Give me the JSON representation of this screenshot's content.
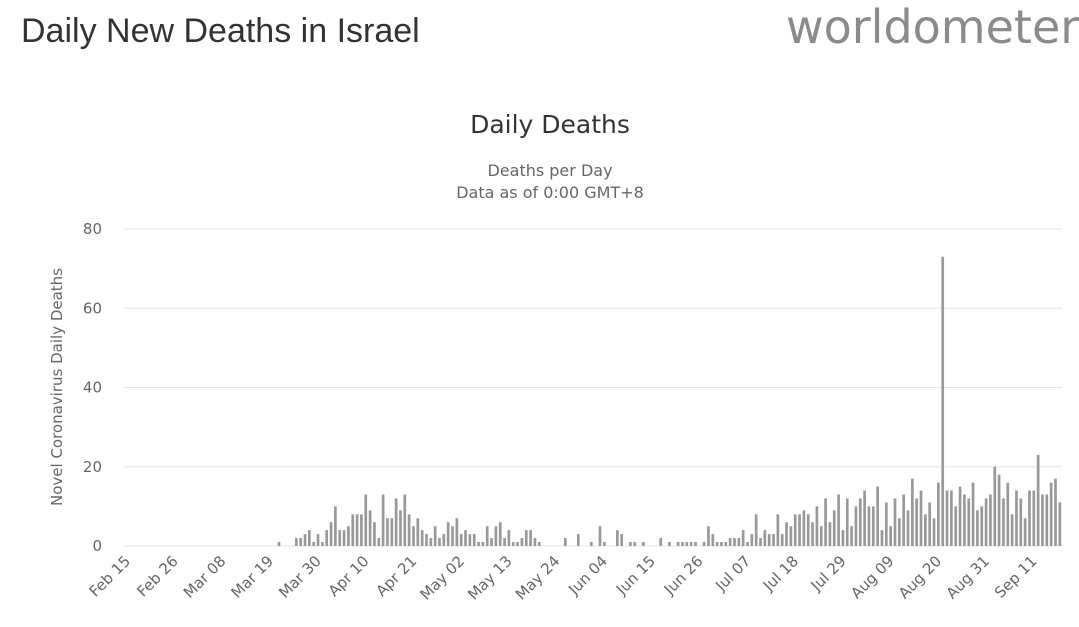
{
  "header": {
    "title": "Daily New Deaths in Israel",
    "logo_text": "worldometer"
  },
  "colors": {
    "bar": "#999999",
    "grid": "#e6e6e6",
    "text": "#666666",
    "title": "#333333"
  },
  "chart_data": {
    "type": "bar",
    "title": "Daily Deaths",
    "subtitle_line1": "Deaths per Day",
    "subtitle_line2": "Data as of 0:00 GMT+8",
    "xlabel": "",
    "ylabel": "Novel Coronavirus Daily Deaths",
    "ylim": [
      0,
      80
    ],
    "yticks": [
      0,
      20,
      40,
      60,
      80
    ],
    "start_date": "Feb 15",
    "xtick_labels": [
      "Feb 15",
      "Feb 26",
      "Mar 08",
      "Mar 19",
      "Mar 30",
      "Apr 10",
      "Apr 21",
      "May 02",
      "May 13",
      "May 24",
      "Jun 04",
      "Jun 15",
      "Jun 26",
      "Jul 07",
      "Jul 18",
      "Jul 29",
      "Aug 09",
      "Aug 20",
      "Aug 31",
      "Sep 11"
    ],
    "xtick_interval_days": 11,
    "series": [
      {
        "name": "Daily Deaths",
        "values": [
          0,
          0,
          0,
          0,
          0,
          0,
          0,
          0,
          0,
          0,
          0,
          0,
          0,
          0,
          0,
          0,
          0,
          0,
          0,
          0,
          0,
          0,
          0,
          0,
          0,
          0,
          0,
          0,
          0,
          0,
          0,
          0,
          0,
          0,
          0,
          1,
          0,
          0,
          0,
          2,
          2,
          3,
          4,
          1,
          3,
          1,
          4,
          6,
          10,
          4,
          4,
          5,
          8,
          8,
          8,
          13,
          9,
          6,
          2,
          13,
          7,
          7,
          12,
          9,
          13,
          8,
          5,
          7,
          4,
          3,
          2,
          5,
          2,
          3,
          6,
          5,
          7,
          3,
          4,
          3,
          3,
          1,
          1,
          5,
          2,
          5,
          6,
          2,
          4,
          1,
          1,
          2,
          4,
          4,
          2,
          1,
          0,
          0,
          0,
          0,
          0,
          2,
          0,
          0,
          3,
          0,
          0,
          1,
          0,
          5,
          1,
          0,
          0,
          4,
          3,
          0,
          1,
          1,
          0,
          1,
          0,
          0,
          0,
          2,
          0,
          1,
          0,
          1,
          1,
          1,
          1,
          1,
          0,
          1,
          5,
          3,
          1,
          1,
          1,
          2,
          2,
          2,
          4,
          1,
          3,
          8,
          2,
          4,
          3,
          3,
          8,
          3,
          6,
          5,
          8,
          8,
          9,
          8,
          6,
          10,
          5,
          12,
          6,
          9,
          13,
          4,
          12,
          5,
          10,
          12,
          14,
          10,
          10,
          15,
          4,
          11,
          5,
          12,
          7,
          13,
          9,
          17,
          12,
          14,
          8,
          11,
          7,
          16,
          73,
          14,
          14,
          10,
          15,
          13,
          12,
          16,
          9,
          10,
          12,
          13,
          20,
          18,
          12,
          16,
          8,
          14,
          12,
          7,
          14,
          14,
          23,
          13,
          13,
          16,
          17,
          11
        ]
      }
    ]
  }
}
